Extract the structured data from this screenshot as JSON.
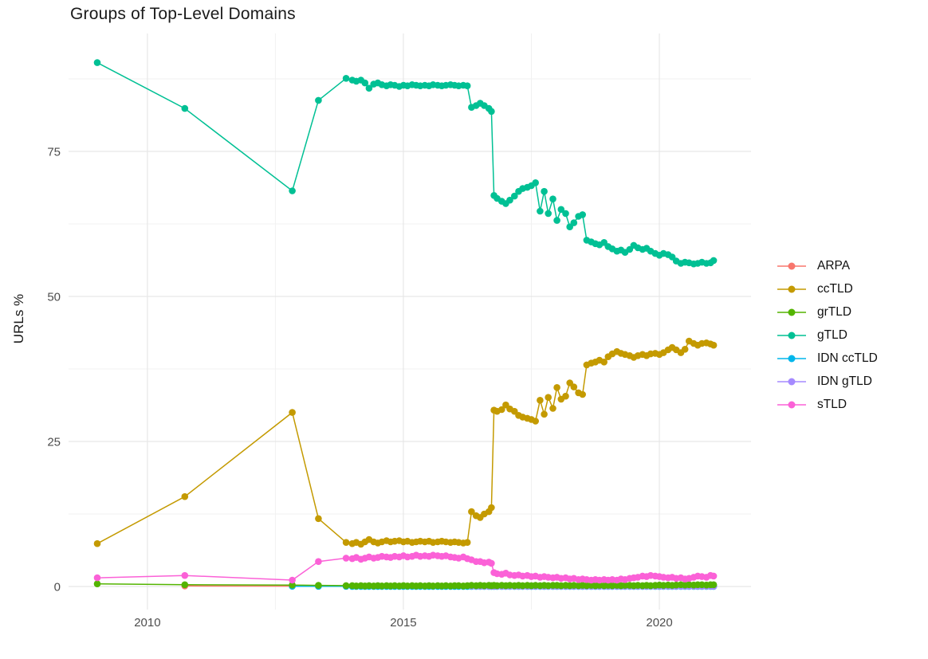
{
  "figure": {
    "title": "Groups of Top-Level Domains"
  },
  "axes": {
    "y_title": "URLs %",
    "x_tick_labels": [
      "2010",
      "2015",
      "2020"
    ],
    "y_tick_labels": [
      "0",
      "25",
      "50",
      "75"
    ]
  },
  "legend": {
    "position": "right",
    "items": [
      {
        "label": "ARPA",
        "color": "#F8766D"
      },
      {
        "label": "ccTLD",
        "color": "#C49A00"
      },
      {
        "label": "grTLD",
        "color": "#53B400"
      },
      {
        "label": "gTLD",
        "color": "#00C094"
      },
      {
        "label": "IDN ccTLD",
        "color": "#00B6EB"
      },
      {
        "label": "IDN gTLD",
        "color": "#A58AFF"
      },
      {
        "label": "sTLD",
        "color": "#FB61D7"
      }
    ]
  },
  "chart_data": {
    "type": "line",
    "title": "Groups of Top-Level Domains",
    "xlabel": "",
    "ylabel": "URLs %",
    "xlim": [
      2008.46,
      2021.79
    ],
    "ylim": [
      -3.98,
      95.33
    ],
    "x_ticks": [
      2010,
      2015,
      2020
    ],
    "y_ticks": [
      0,
      25,
      50,
      75
    ],
    "x_minor": [
      2012.5,
      2017.5
    ],
    "y_minor": [
      12.5,
      37.5,
      62.5,
      87.5
    ],
    "grid": true,
    "legend_position": "right",
    "x": [
      2009.02,
      2010.73,
      2012.83,
      2013.34,
      2013.88,
      2014.0,
      2014.08,
      2014.17,
      2014.25,
      2014.33,
      2014.42,
      2014.5,
      2014.58,
      2014.67,
      2014.75,
      2014.83,
      2014.92,
      2015.0,
      2015.08,
      2015.17,
      2015.25,
      2015.33,
      2015.42,
      2015.5,
      2015.58,
      2015.67,
      2015.75,
      2015.83,
      2015.92,
      2016.0,
      2016.08,
      2016.17,
      2016.25,
      2016.33,
      2016.42,
      2016.5,
      2016.58,
      2016.67,
      2016.72,
      2016.77,
      2016.83,
      2016.92,
      2017.0,
      2017.08,
      2017.17,
      2017.25,
      2017.33,
      2017.42,
      2017.5,
      2017.58,
      2017.67,
      2017.75,
      2017.83,
      2017.92,
      2018.0,
      2018.08,
      2018.17,
      2018.25,
      2018.33,
      2018.42,
      2018.5,
      2018.58,
      2018.67,
      2018.75,
      2018.83,
      2018.92,
      2019.0,
      2019.08,
      2019.17,
      2019.25,
      2019.33,
      2019.42,
      2019.5,
      2019.58,
      2019.67,
      2019.75,
      2019.83,
      2019.92,
      2020.0,
      2020.08,
      2020.17,
      2020.25,
      2020.33,
      2020.42,
      2020.5,
      2020.58,
      2020.67,
      2020.75,
      2020.83,
      2020.92,
      2021.0,
      2021.06
    ],
    "draw_order": [
      "ARPA",
      "IDN ccTLD",
      "IDN gTLD",
      "ccTLD",
      "grTLD",
      "gTLD",
      "sTLD"
    ],
    "series": [
      {
        "name": "ARPA",
        "color": "#F8766D",
        "start_index": 1,
        "values": [
          0.1,
          0.07,
          0.05,
          0.05,
          0.04,
          0.04,
          0.04,
          0.04,
          0.04,
          0.04,
          0.04,
          0.04,
          0.04,
          0.04,
          0.04,
          0.04,
          0.04,
          0.04,
          0.04,
          0.04,
          0.04,
          0.04,
          0.04,
          0.04,
          0.04,
          0.04,
          0.04,
          0.04,
          0.04,
          0.04,
          0.04,
          0.04,
          0.04,
          0.04,
          0.04,
          0.04,
          0.04,
          0.04,
          0.04,
          0.04,
          0.04,
          0.04,
          0.04,
          0.04,
          0.04,
          0.04,
          0.04,
          0.04,
          0.04,
          0.04,
          0.04,
          0.04,
          0.04,
          0.04,
          0.04,
          0.04,
          0.04,
          0.04,
          0.04,
          0.04,
          0.04,
          0.04,
          0.04,
          0.04,
          0.04,
          0.04,
          0.04,
          0.04,
          0.04,
          0.04,
          0.04,
          0.04,
          0.04,
          0.04,
          0.04,
          0.04,
          0.04,
          0.04,
          0.04,
          0.04,
          0.04,
          0.04,
          0.04,
          0.04,
          0.04,
          0.04,
          0.04,
          0.04,
          0.04,
          0.04,
          0.04
        ]
      },
      {
        "name": "ccTLD",
        "color": "#C49A00",
        "start_index": 0,
        "values": [
          7.4,
          15.5,
          30.0,
          11.7,
          7.6,
          7.4,
          7.6,
          7.3,
          7.7,
          8.1,
          7.7,
          7.5,
          7.7,
          7.9,
          7.7,
          7.8,
          7.9,
          7.7,
          7.8,
          7.6,
          7.7,
          7.8,
          7.7,
          7.8,
          7.6,
          7.7,
          7.8,
          7.7,
          7.6,
          7.7,
          7.6,
          7.5,
          7.6,
          12.9,
          12.2,
          11.9,
          12.5,
          12.9,
          13.6,
          30.4,
          30.2,
          30.5,
          31.3,
          30.6,
          30.2,
          29.5,
          29.2,
          29.0,
          28.8,
          28.5,
          32.1,
          29.7,
          32.6,
          30.7,
          34.3,
          32.3,
          32.8,
          35.1,
          34.4,
          33.4,
          33.1,
          38.2,
          38.5,
          38.7,
          39.0,
          38.7,
          39.6,
          40.1,
          40.5,
          40.2,
          40.0,
          39.8,
          39.5,
          39.8,
          40.0,
          39.8,
          40.1,
          40.2,
          40.0,
          40.3,
          40.8,
          41.2,
          40.8,
          40.3,
          40.9,
          42.3,
          41.9,
          41.6,
          41.9,
          42.0,
          41.8,
          41.6
        ]
      },
      {
        "name": "grTLD",
        "color": "#53B400",
        "start_index": 0,
        "values": [
          0.45,
          0.3,
          0.25,
          0.2,
          0.15,
          0.15,
          0.1,
          0.15,
          0.1,
          0.15,
          0.1,
          0.15,
          0.1,
          0.15,
          0.1,
          0.15,
          0.1,
          0.15,
          0.1,
          0.15,
          0.1,
          0.15,
          0.1,
          0.15,
          0.1,
          0.15,
          0.1,
          0.15,
          0.1,
          0.15,
          0.15,
          0.1,
          0.15,
          0.2,
          0.15,
          0.2,
          0.15,
          0.2,
          0.15,
          0.2,
          0.15,
          0.2,
          0.15,
          0.2,
          0.15,
          0.2,
          0.15,
          0.2,
          0.15,
          0.2,
          0.15,
          0.2,
          0.15,
          0.2,
          0.2,
          0.15,
          0.2,
          0.15,
          0.2,
          0.15,
          0.2,
          0.15,
          0.2,
          0.15,
          0.2,
          0.15,
          0.2,
          0.15,
          0.2,
          0.15,
          0.2,
          0.2,
          0.15,
          0.2,
          0.15,
          0.2,
          0.15,
          0.2,
          0.25,
          0.2,
          0.25,
          0.2,
          0.25,
          0.3,
          0.25,
          0.3,
          0.25,
          0.3,
          0.3,
          0.25,
          0.3,
          0.3
        ]
      },
      {
        "name": "gTLD",
        "color": "#00C094",
        "start_index": 0,
        "values": [
          90.3,
          82.4,
          68.2,
          83.8,
          87.6,
          87.3,
          87.1,
          87.3,
          86.8,
          85.9,
          86.6,
          86.8,
          86.5,
          86.3,
          86.5,
          86.4,
          86.2,
          86.4,
          86.3,
          86.5,
          86.4,
          86.3,
          86.4,
          86.3,
          86.5,
          86.4,
          86.3,
          86.4,
          86.5,
          86.4,
          86.3,
          86.4,
          86.3,
          82.6,
          82.9,
          83.3,
          82.9,
          82.4,
          81.9,
          67.4,
          66.9,
          66.4,
          66.0,
          66.6,
          67.3,
          68.1,
          68.6,
          68.8,
          69.1,
          69.6,
          64.7,
          68.1,
          64.3,
          66.8,
          63.1,
          65.0,
          64.3,
          62.0,
          62.7,
          63.8,
          64.1,
          59.7,
          59.4,
          59.1,
          58.9,
          59.3,
          58.6,
          58.2,
          57.8,
          58.0,
          57.6,
          58.1,
          58.8,
          58.4,
          58.1,
          58.3,
          57.8,
          57.4,
          57.1,
          57.4,
          57.2,
          56.8,
          56.1,
          55.7,
          55.9,
          55.8,
          55.6,
          55.7,
          55.9,
          55.7,
          55.8,
          56.2
        ]
      },
      {
        "name": "IDN ccTLD",
        "color": "#00B6EB",
        "start_index": 2,
        "values": [
          0.05,
          0.03,
          0.03,
          0.02,
          0.02,
          0.02,
          0.02,
          0.02,
          0.02,
          0.02,
          0.02,
          0.02,
          0.02,
          0.02,
          0.02,
          0.02,
          0.02,
          0.02,
          0.02,
          0.02,
          0.02,
          0.02,
          0.02,
          0.02,
          0.02,
          0.02,
          0.02,
          0.02,
          0.02,
          0.02,
          0.02,
          0.02,
          0.02,
          0.02,
          0.02,
          0.02,
          0.02,
          0.02,
          0.02,
          0.02,
          0.02,
          0.02,
          0.02,
          0.02,
          0.02,
          0.02,
          0.02,
          0.02,
          0.02,
          0.02,
          0.02,
          0.02,
          0.02,
          0.02,
          0.02,
          0.02,
          0.02,
          0.02,
          0.02,
          0.02,
          0.02,
          0.02,
          0.02,
          0.02,
          0.02,
          0.02,
          0.02,
          0.02,
          0.02,
          0.02,
          0.02,
          0.02,
          0.02,
          0.02,
          0.02,
          0.02,
          0.02,
          0.02,
          0.02,
          0.02,
          0.02,
          0.02,
          0.02,
          0.02,
          0.02,
          0.02,
          0.02,
          0.02,
          0.02,
          0.02
        ]
      },
      {
        "name": "IDN gTLD",
        "color": "#A58AFF",
        "start_index": 33,
        "values": [
          0.08,
          0.06,
          0.05,
          0.05,
          0.05,
          0.05,
          0.05,
          0.05,
          0.05,
          0.05,
          0.05,
          0.05,
          0.05,
          0.05,
          0.05,
          0.05,
          0.05,
          0.05,
          0.05,
          0.05,
          0.05,
          0.05,
          0.05,
          0.05,
          0.05,
          0.05,
          0.05,
          0.05,
          0.05,
          0.05,
          0.05,
          0.05,
          0.05,
          0.05,
          0.05,
          0.05,
          0.05,
          0.05,
          0.05,
          0.05,
          0.05,
          0.05,
          0.05,
          0.05,
          0.05,
          0.05,
          0.05,
          0.05,
          0.05,
          0.05,
          0.05,
          0.05,
          0.05,
          0.05,
          0.05,
          0.05,
          0.05,
          0.05,
          0.05
        ]
      },
      {
        "name": "sTLD",
        "color": "#FB61D7",
        "start_index": 0,
        "values": [
          1.5,
          1.9,
          1.1,
          4.3,
          4.9,
          4.8,
          5.0,
          4.7,
          4.9,
          5.1,
          4.9,
          5.0,
          5.2,
          5.1,
          5.0,
          5.2,
          5.1,
          5.3,
          5.1,
          5.2,
          5.4,
          5.2,
          5.3,
          5.2,
          5.4,
          5.3,
          5.2,
          5.3,
          5.1,
          5.0,
          4.9,
          5.1,
          4.8,
          4.6,
          4.3,
          4.3,
          4.1,
          4.2,
          4.0,
          2.4,
          2.2,
          2.1,
          2.3,
          2.0,
          1.9,
          2.0,
          1.8,
          1.9,
          1.7,
          1.8,
          1.6,
          1.7,
          1.6,
          1.5,
          1.6,
          1.4,
          1.5,
          1.3,
          1.4,
          1.2,
          1.3,
          1.2,
          1.1,
          1.2,
          1.1,
          1.2,
          1.1,
          1.2,
          1.1,
          1.3,
          1.2,
          1.4,
          1.5,
          1.6,
          1.8,
          1.7,
          1.9,
          1.8,
          1.7,
          1.6,
          1.5,
          1.6,
          1.4,
          1.5,
          1.3,
          1.4,
          1.6,
          1.8,
          1.7,
          1.6,
          1.9,
          1.8
        ]
      }
    ]
  }
}
